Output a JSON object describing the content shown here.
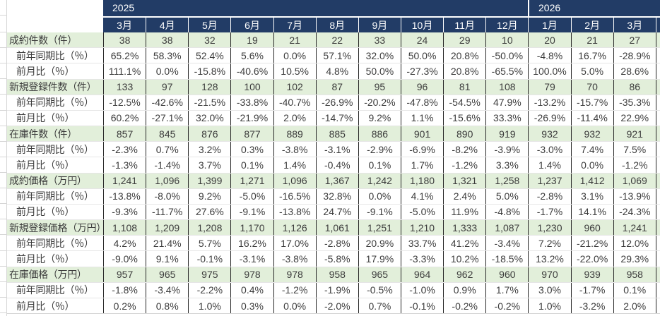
{
  "sheet": {
    "years": [
      {
        "label": "2025"
      },
      {
        "label": "2026"
      }
    ],
    "months": [
      "3月",
      "4月",
      "5月",
      "6月",
      "7月",
      "8月",
      "9月",
      "10月",
      "11月",
      "12月",
      "1月",
      "2月",
      "3月"
    ],
    "rows": [
      {
        "label": "成約件数（件）",
        "type": "section",
        "values": [
          "38",
          "38",
          "32",
          "19",
          "21",
          "22",
          "33",
          "24",
          "29",
          "10",
          "20",
          "21",
          "27"
        ]
      },
      {
        "label": "前年同期比（％）",
        "type": "sub",
        "values": [
          "65.2%",
          "58.3%",
          "52.4%",
          "5.6%",
          "0.0%",
          "57.1%",
          "32.0%",
          "50.0%",
          "20.8%",
          "-50.0%",
          "-4.8%",
          "16.7%",
          "-28.9%"
        ]
      },
      {
        "label": "前月比（％）",
        "type": "sub",
        "values": [
          "111.1%",
          "0.0%",
          "-15.8%",
          "-40.6%",
          "10.5%",
          "4.8%",
          "50.0%",
          "-27.3%",
          "20.8%",
          "-65.5%",
          "100.0%",
          "5.0%",
          "28.6%"
        ]
      },
      {
        "label": "新規登録件数（件）",
        "type": "section",
        "values": [
          "133",
          "97",
          "128",
          "100",
          "102",
          "87",
          "95",
          "96",
          "81",
          "108",
          "79",
          "70",
          "86"
        ]
      },
      {
        "label": "前年同期比（％）",
        "type": "sub",
        "values": [
          "-12.5%",
          "-42.6%",
          "-21.5%",
          "-33.8%",
          "-40.7%",
          "-26.9%",
          "-20.2%",
          "-47.8%",
          "-54.5%",
          "47.9%",
          "-13.2%",
          "-15.7%",
          "-35.3%"
        ]
      },
      {
        "label": "前月比（％）",
        "type": "sub",
        "values": [
          "60.2%",
          "-27.1%",
          "32.0%",
          "-21.9%",
          "2.0%",
          "-14.7%",
          "9.2%",
          "1.1%",
          "-15.6%",
          "33.3%",
          "-26.9%",
          "-11.4%",
          "22.9%"
        ]
      },
      {
        "label": "在庫件数（件）",
        "type": "section",
        "values": [
          "857",
          "845",
          "876",
          "877",
          "889",
          "885",
          "886",
          "901",
          "890",
          "919",
          "932",
          "932",
          "921"
        ]
      },
      {
        "label": "前年同期比（％）",
        "type": "sub",
        "values": [
          "-2.3%",
          "0.7%",
          "3.2%",
          "0.3%",
          "-3.8%",
          "-3.1%",
          "-2.9%",
          "-6.9%",
          "-8.2%",
          "-3.9%",
          "-3.0%",
          "7.4%",
          "7.5%"
        ]
      },
      {
        "label": "前月比（％）",
        "type": "sub",
        "values": [
          "-1.3%",
          "-1.4%",
          "3.7%",
          "0.1%",
          "1.4%",
          "-0.4%",
          "0.1%",
          "1.7%",
          "-1.2%",
          "3.3%",
          "1.4%",
          "0.0%",
          "-1.2%"
        ]
      },
      {
        "label": "成約価格（万円）",
        "type": "section",
        "values": [
          "1,241",
          "1,096",
          "1,399",
          "1,271",
          "1,096",
          "1,367",
          "1,242",
          "1,180",
          "1,321",
          "1,258",
          "1,237",
          "1,412",
          "1,069"
        ]
      },
      {
        "label": "前年同期比（％）",
        "type": "sub",
        "values": [
          "-13.8%",
          "-8.0%",
          "9.2%",
          "-5.0%",
          "-16.5%",
          "32.8%",
          "0.0%",
          "4.1%",
          "2.4%",
          "5.0%",
          "-2.8%",
          "3.1%",
          "-13.9%"
        ]
      },
      {
        "label": "前月比（％）",
        "type": "sub",
        "values": [
          "-9.3%",
          "-11.7%",
          "27.6%",
          "-9.1%",
          "-13.8%",
          "24.7%",
          "-9.1%",
          "-5.0%",
          "11.9%",
          "-4.8%",
          "-1.7%",
          "14.1%",
          "-24.3%"
        ]
      },
      {
        "label": "新規登録価格（万円）",
        "type": "section",
        "values": [
          "1,108",
          "1,209",
          "1,208",
          "1,170",
          "1,126",
          "1,061",
          "1,251",
          "1,210",
          "1,333",
          "1,087",
          "1,230",
          "960",
          "1,241"
        ]
      },
      {
        "label": "前年同期比（％）",
        "type": "sub",
        "values": [
          "4.2%",
          "21.4%",
          "5.7%",
          "16.2%",
          "17.0%",
          "-2.8%",
          "20.9%",
          "33.7%",
          "41.2%",
          "-3.4%",
          "7.2%",
          "-21.2%",
          "12.0%"
        ]
      },
      {
        "label": "前月比（％）",
        "type": "sub",
        "values": [
          "-9.0%",
          "9.1%",
          "-0.1%",
          "-3.1%",
          "-3.8%",
          "-5.8%",
          "17.9%",
          "-3.3%",
          "10.2%",
          "-18.5%",
          "13.2%",
          "-22.0%",
          "29.3%"
        ]
      },
      {
        "label": "在庫価格（万円）",
        "type": "section",
        "values": [
          "957",
          "965",
          "975",
          "978",
          "978",
          "958",
          "965",
          "964",
          "962",
          "960",
          "970",
          "939",
          "958"
        ]
      },
      {
        "label": "前年同期比（％）",
        "type": "sub",
        "values": [
          "-1.8%",
          "-3.4%",
          "-2.2%",
          "0.4%",
          "-1.2%",
          "-1.9%",
          "-0.5%",
          "-1.0%",
          "0.9%",
          "1.7%",
          "3.0%",
          "-1.7%",
          "0.1%"
        ]
      },
      {
        "label": "前月比（％）",
        "type": "sub",
        "values": [
          "0.2%",
          "0.8%",
          "1.0%",
          "0.3%",
          "0.0%",
          "-2.0%",
          "0.7%",
          "-0.1%",
          "-0.2%",
          "-0.2%",
          "1.0%",
          "-3.2%",
          "2.0%"
        ]
      }
    ],
    "colors": {
      "header_bg": "#223c66",
      "header_text": "#ffffff",
      "section_row_bg": "#e2efda",
      "cell_border": "#262626",
      "gridline": "#d6d6d6",
      "text": "#3c3c3c"
    }
  }
}
